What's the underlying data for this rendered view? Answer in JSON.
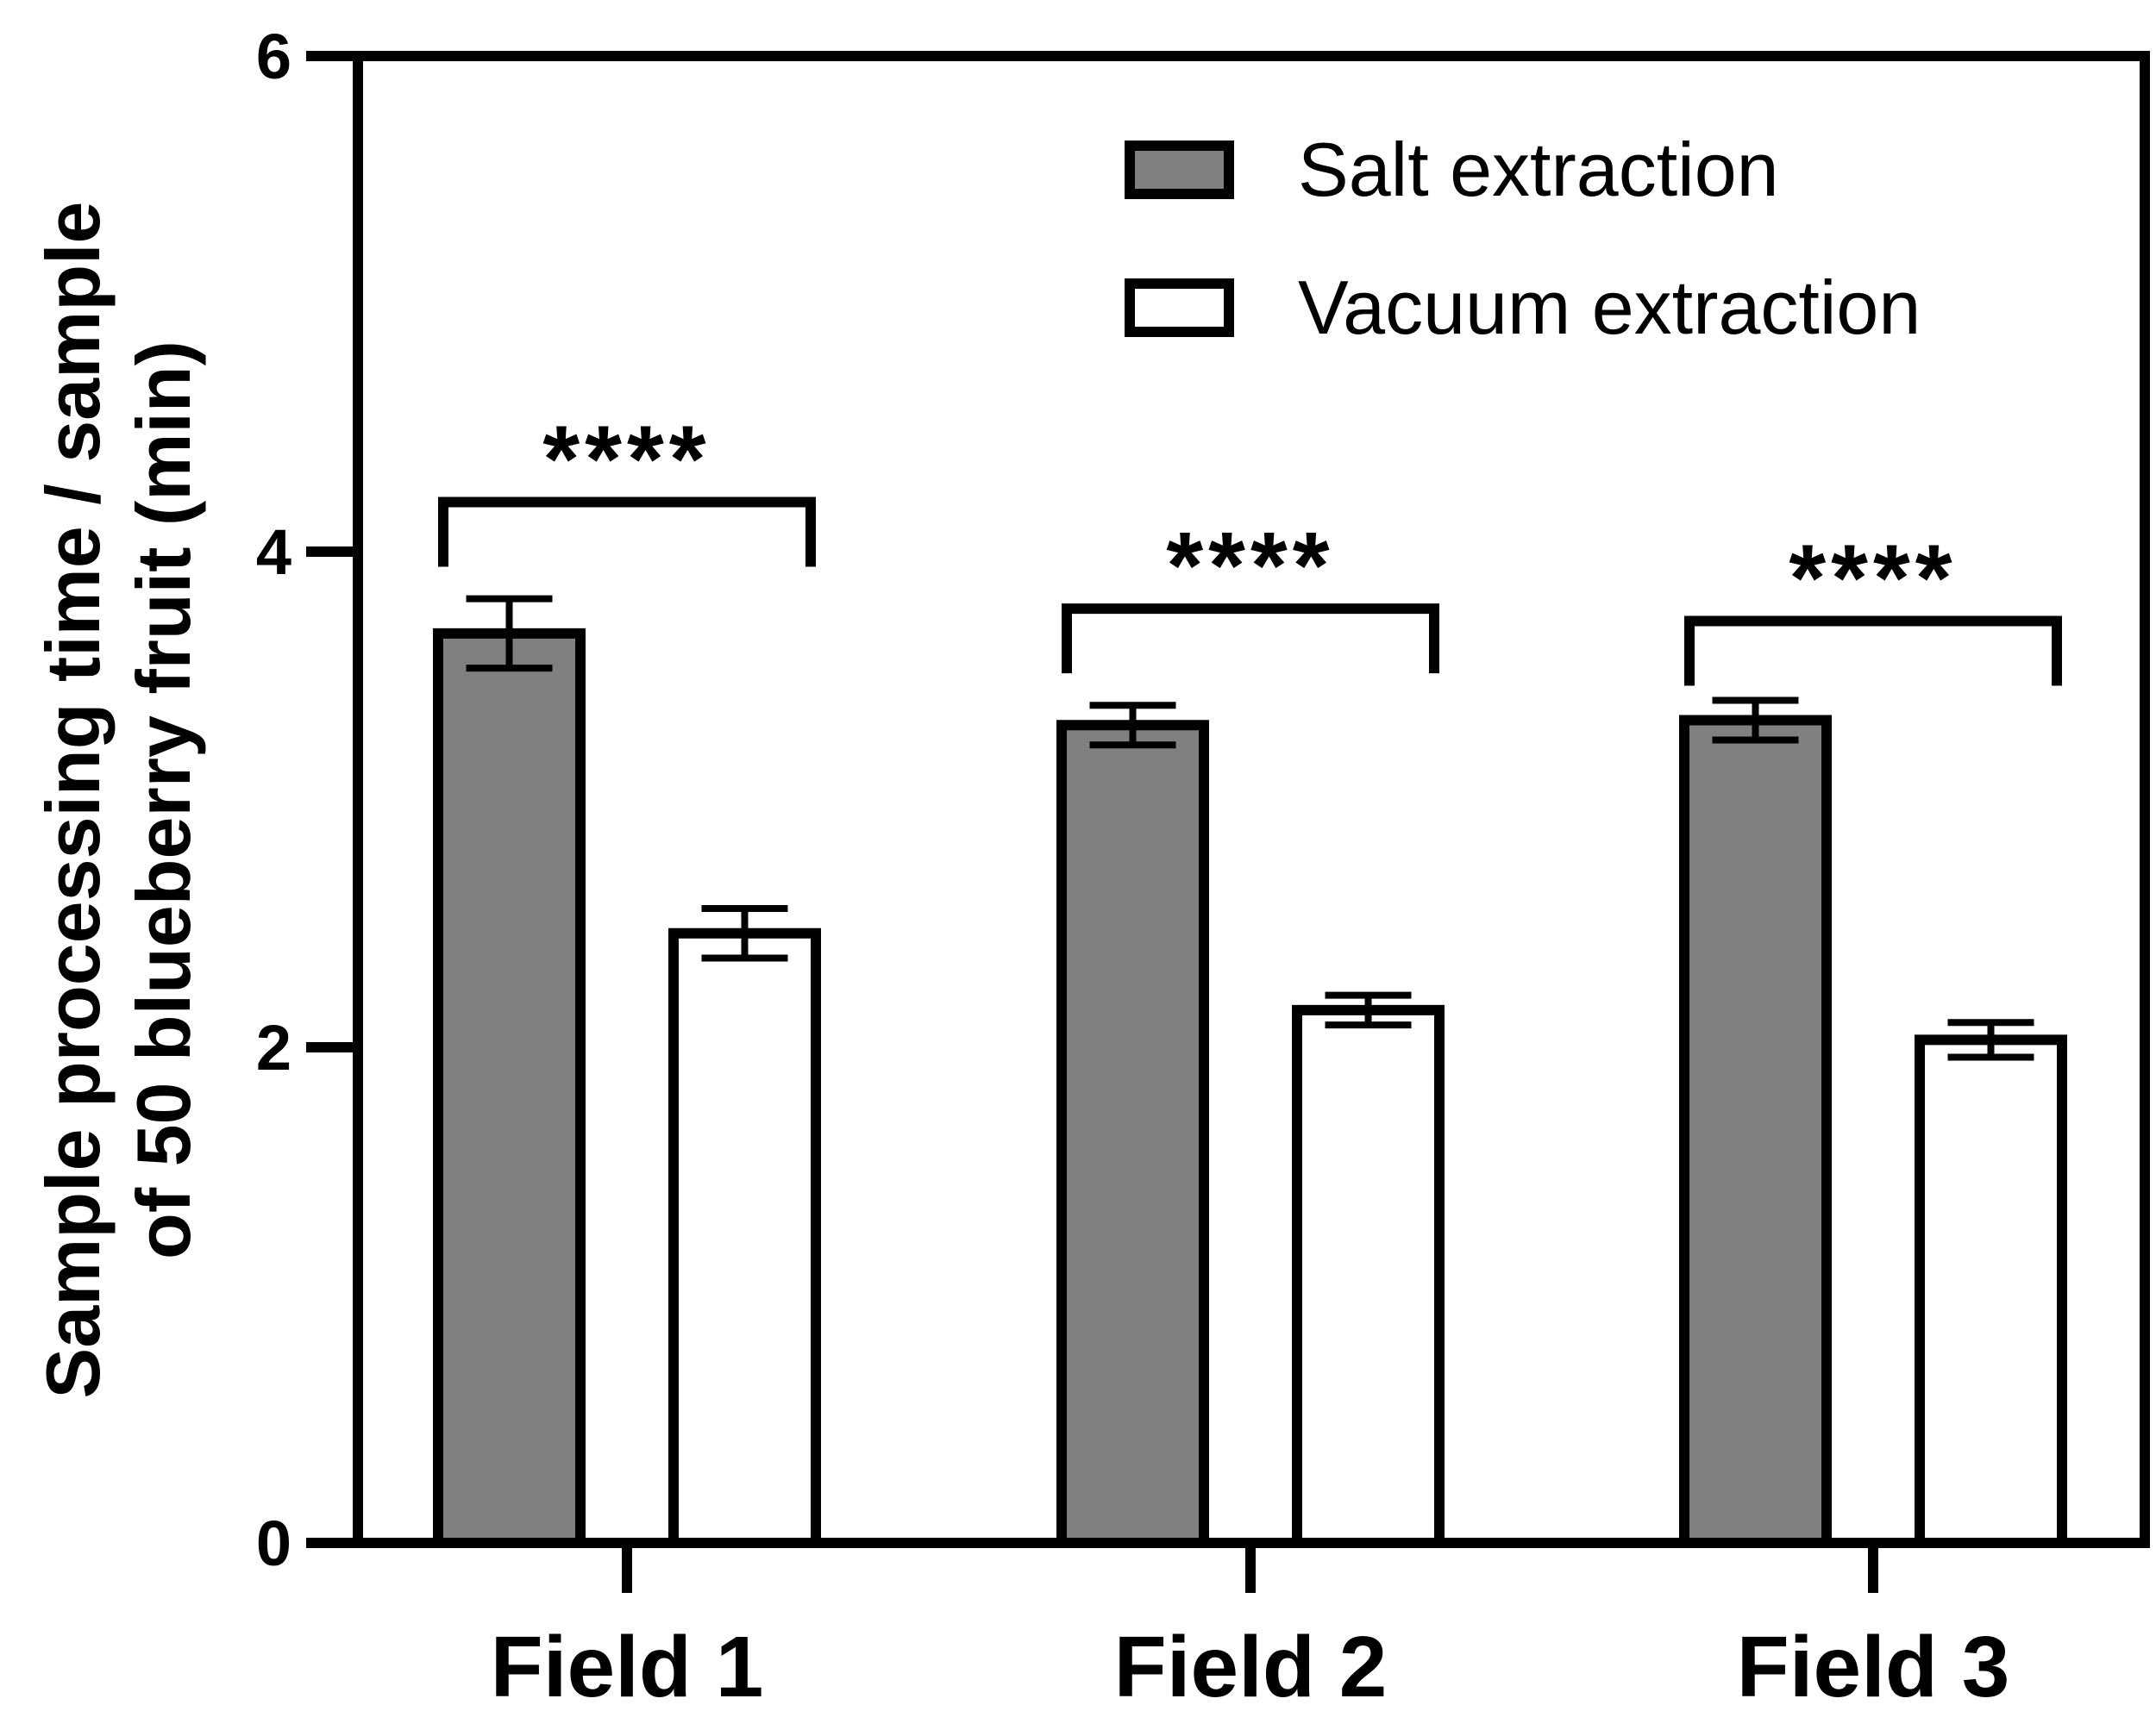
{
  "chart_data": {
    "type": "bar",
    "title": "",
    "ylabel_lines": [
      "Sample processing time / sample",
      "of 50 blueberry fruit (min)"
    ],
    "xlabel": "",
    "categories": [
      "Field 1",
      "Field 2",
      "Field 3"
    ],
    "ylim": [
      0,
      6
    ],
    "yticks": [
      0,
      2,
      4,
      6
    ],
    "series": [
      {
        "name": "Salt extraction",
        "color": "#808080",
        "values": [
          3.67,
          3.3,
          3.32
        ],
        "errors": [
          0.14,
          0.08,
          0.08
        ]
      },
      {
        "name": "Vacuum extraction",
        "color": "#ffffff",
        "values": [
          2.46,
          2.15,
          2.03
        ],
        "errors": [
          0.1,
          0.06,
          0.07
        ]
      }
    ],
    "significance": [
      {
        "category": "Field 1",
        "label": "****",
        "bracket_y": 4.2
      },
      {
        "category": "Field 2",
        "label": "****",
        "bracket_y": 3.77
      },
      {
        "category": "Field 3",
        "label": "****",
        "bracket_y": 3.72
      }
    ],
    "legend_position": "top-right",
    "grid": false
  }
}
